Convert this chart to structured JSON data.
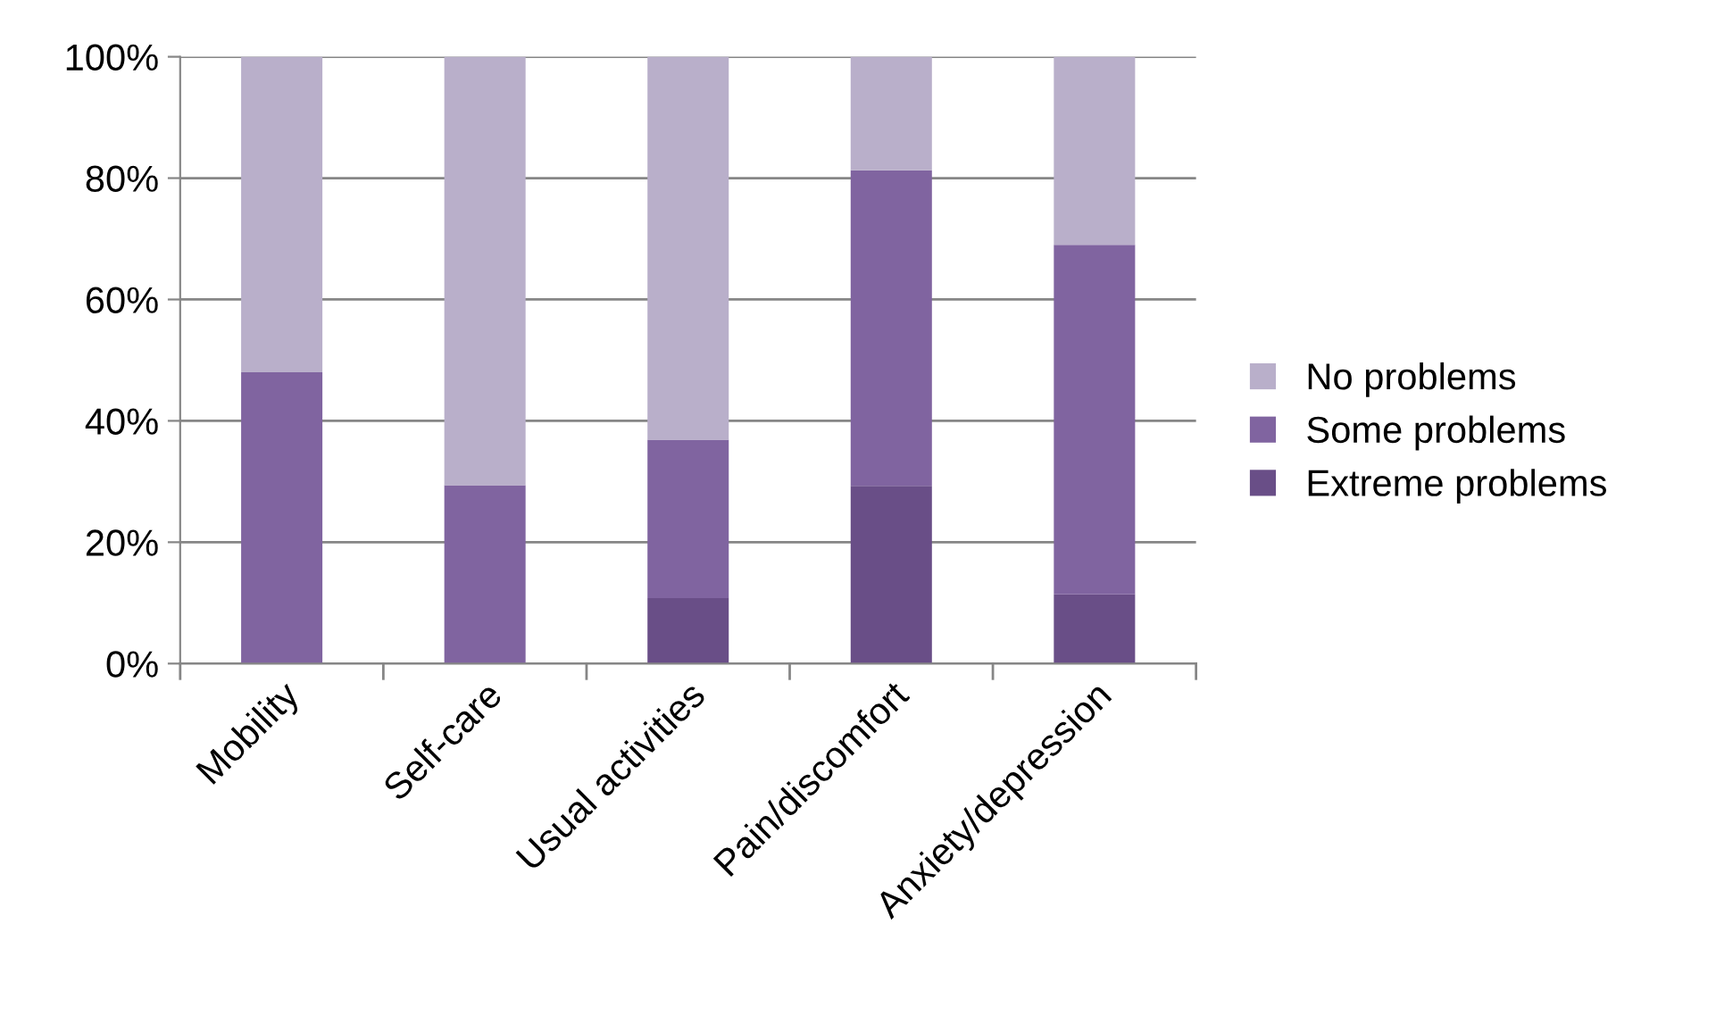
{
  "chart_data": {
    "type": "bar",
    "stacked": true,
    "categories": [
      "Mobility",
      "Self-care",
      "Usual activities",
      "Pain/discomfort",
      "Anxiety/depression"
    ],
    "series": [
      {
        "name": "Extreme problems",
        "color": "#694e87",
        "values": [
          0,
          0,
          10.8,
          29.3,
          11.4
        ]
      },
      {
        "name": "Some problems",
        "color": "#8064a0",
        "values": [
          48.0,
          29.4,
          26.1,
          52.0,
          57.6
        ]
      },
      {
        "name": "No problems",
        "color": "#b9afca",
        "values": [
          52.0,
          70.6,
          63.1,
          18.7,
          31.0
        ]
      }
    ],
    "ylim": [
      0,
      100
    ],
    "yticks": [
      {
        "value": 0,
        "label": "0%"
      },
      {
        "value": 20,
        "label": "20%"
      },
      {
        "value": 40,
        "label": "40%"
      },
      {
        "value": 60,
        "label": "60%"
      },
      {
        "value": 80,
        "label": "80%"
      },
      {
        "value": 100,
        "label": "100%"
      }
    ],
    "grid": "y",
    "legend": "right"
  }
}
